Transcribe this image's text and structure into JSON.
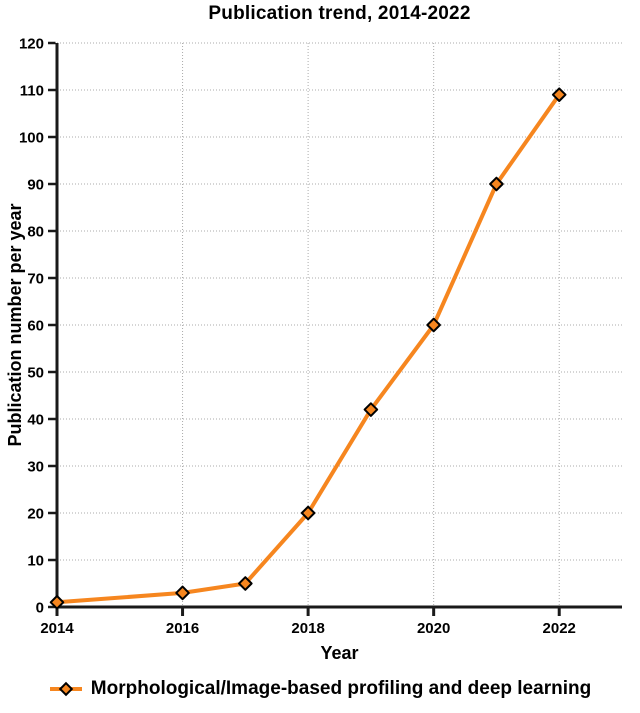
{
  "title": "Publication trend, 2014-2022",
  "chart_data": {
    "type": "line",
    "x": [
      2014,
      2016,
      2017,
      2018,
      2019,
      2020,
      2021,
      2022
    ],
    "series": [
      {
        "name": "Morphological/Image-based profiling and deep learning",
        "values": [
          1,
          3,
          5,
          20,
          42,
          60,
          90,
          109
        ],
        "color": "#F6861F",
        "marker": "diamond"
      }
    ],
    "title": "Publication trend, 2014-2022",
    "xlabel": "Year",
    "ylabel": "Publication number per year",
    "xlim": [
      2014,
      2023
    ],
    "ylim": [
      0,
      120
    ],
    "xticks": [
      2014,
      2016,
      2018,
      2020,
      2022
    ],
    "ytick_step": 10,
    "grid": true,
    "legend_position": "bottom"
  },
  "legend": {
    "label": "Morphological/Image-based profiling and deep learning"
  },
  "colors": {
    "accent": "#F6861F",
    "marker_outline": "#000000",
    "grid": "#ABABAB",
    "axis": "#1A1A1A",
    "text": "#000000",
    "background": "#FFFFFF"
  }
}
